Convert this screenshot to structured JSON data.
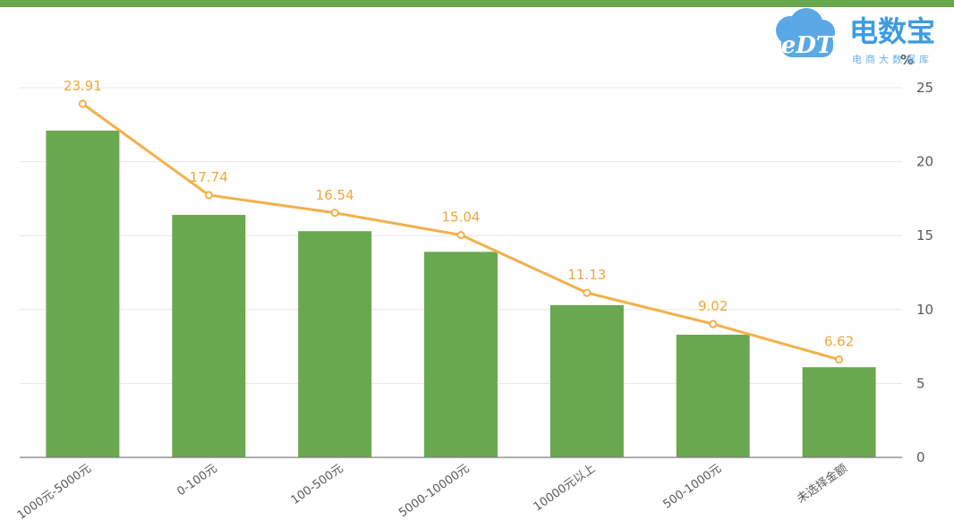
{
  "colors": {
    "top_bar": "#6aa84f",
    "bar": "#6aa84f",
    "line": "#f4b04a",
    "label": "#f0a637",
    "grid": "#e6e6e6",
    "logo_blue": "#3d9be0"
  },
  "logo": {
    "brand": "电数宝",
    "mark": "eDT",
    "tagline": "电商大数据库"
  },
  "chart_data": {
    "type": "bar",
    "categories": [
      "1000元-5000元",
      "0-100元",
      "100-500元",
      "5000-10000元",
      "10000元以上",
      "500-1000元",
      "未选择金额"
    ],
    "series": [
      {
        "type": "bar",
        "values": [
          22.1,
          16.4,
          15.3,
          13.9,
          10.3,
          8.3,
          6.1
        ]
      },
      {
        "type": "line",
        "values": [
          23.91,
          17.74,
          16.54,
          15.04,
          11.13,
          9.02,
          6.62
        ],
        "labels": [
          "23.91",
          "17.74",
          "16.54",
          "15.04",
          "11.13",
          "9.02",
          "6.62"
        ]
      }
    ],
    "y_axis_position": "right",
    "y_unit": "%",
    "ylim": [
      0,
      25
    ],
    "yticks": [
      "0",
      "5",
      "10",
      "15",
      "20",
      "25"
    ],
    "grid": true,
    "legend": "none"
  }
}
